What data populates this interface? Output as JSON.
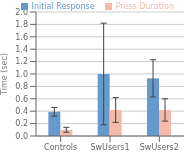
{
  "chart_data": {
    "type": "bar",
    "categories": [
      "Controls",
      "SwUsers1",
      "SwUsers2"
    ],
    "series": [
      {
        "name": "Initial Response",
        "color": "#6699CC",
        "values": [
          0.39,
          1.0,
          0.93
        ],
        "errors": [
          0.07,
          0.82,
          0.3
        ]
      },
      {
        "name": "Press Duration",
        "color": "#F5BBAA",
        "values": [
          0.1,
          0.42,
          0.42
        ],
        "errors": [
          0.04,
          0.2,
          0.18
        ]
      }
    ],
    "ylabel": "Time (sec)",
    "ylim": [
      0,
      2.0
    ],
    "yticks": [
      {
        "value": 0,
        "label": "0.0"
      },
      0.2,
      0.4,
      0.6,
      0.8,
      {
        "value": 1.0,
        "label": "1.0"
      },
      1.2,
      1.4,
      1.6,
      1.8,
      {
        "value": 2.0,
        "label": "2.0"
      }
    ],
    "grid": true,
    "legend": "upper right"
  }
}
